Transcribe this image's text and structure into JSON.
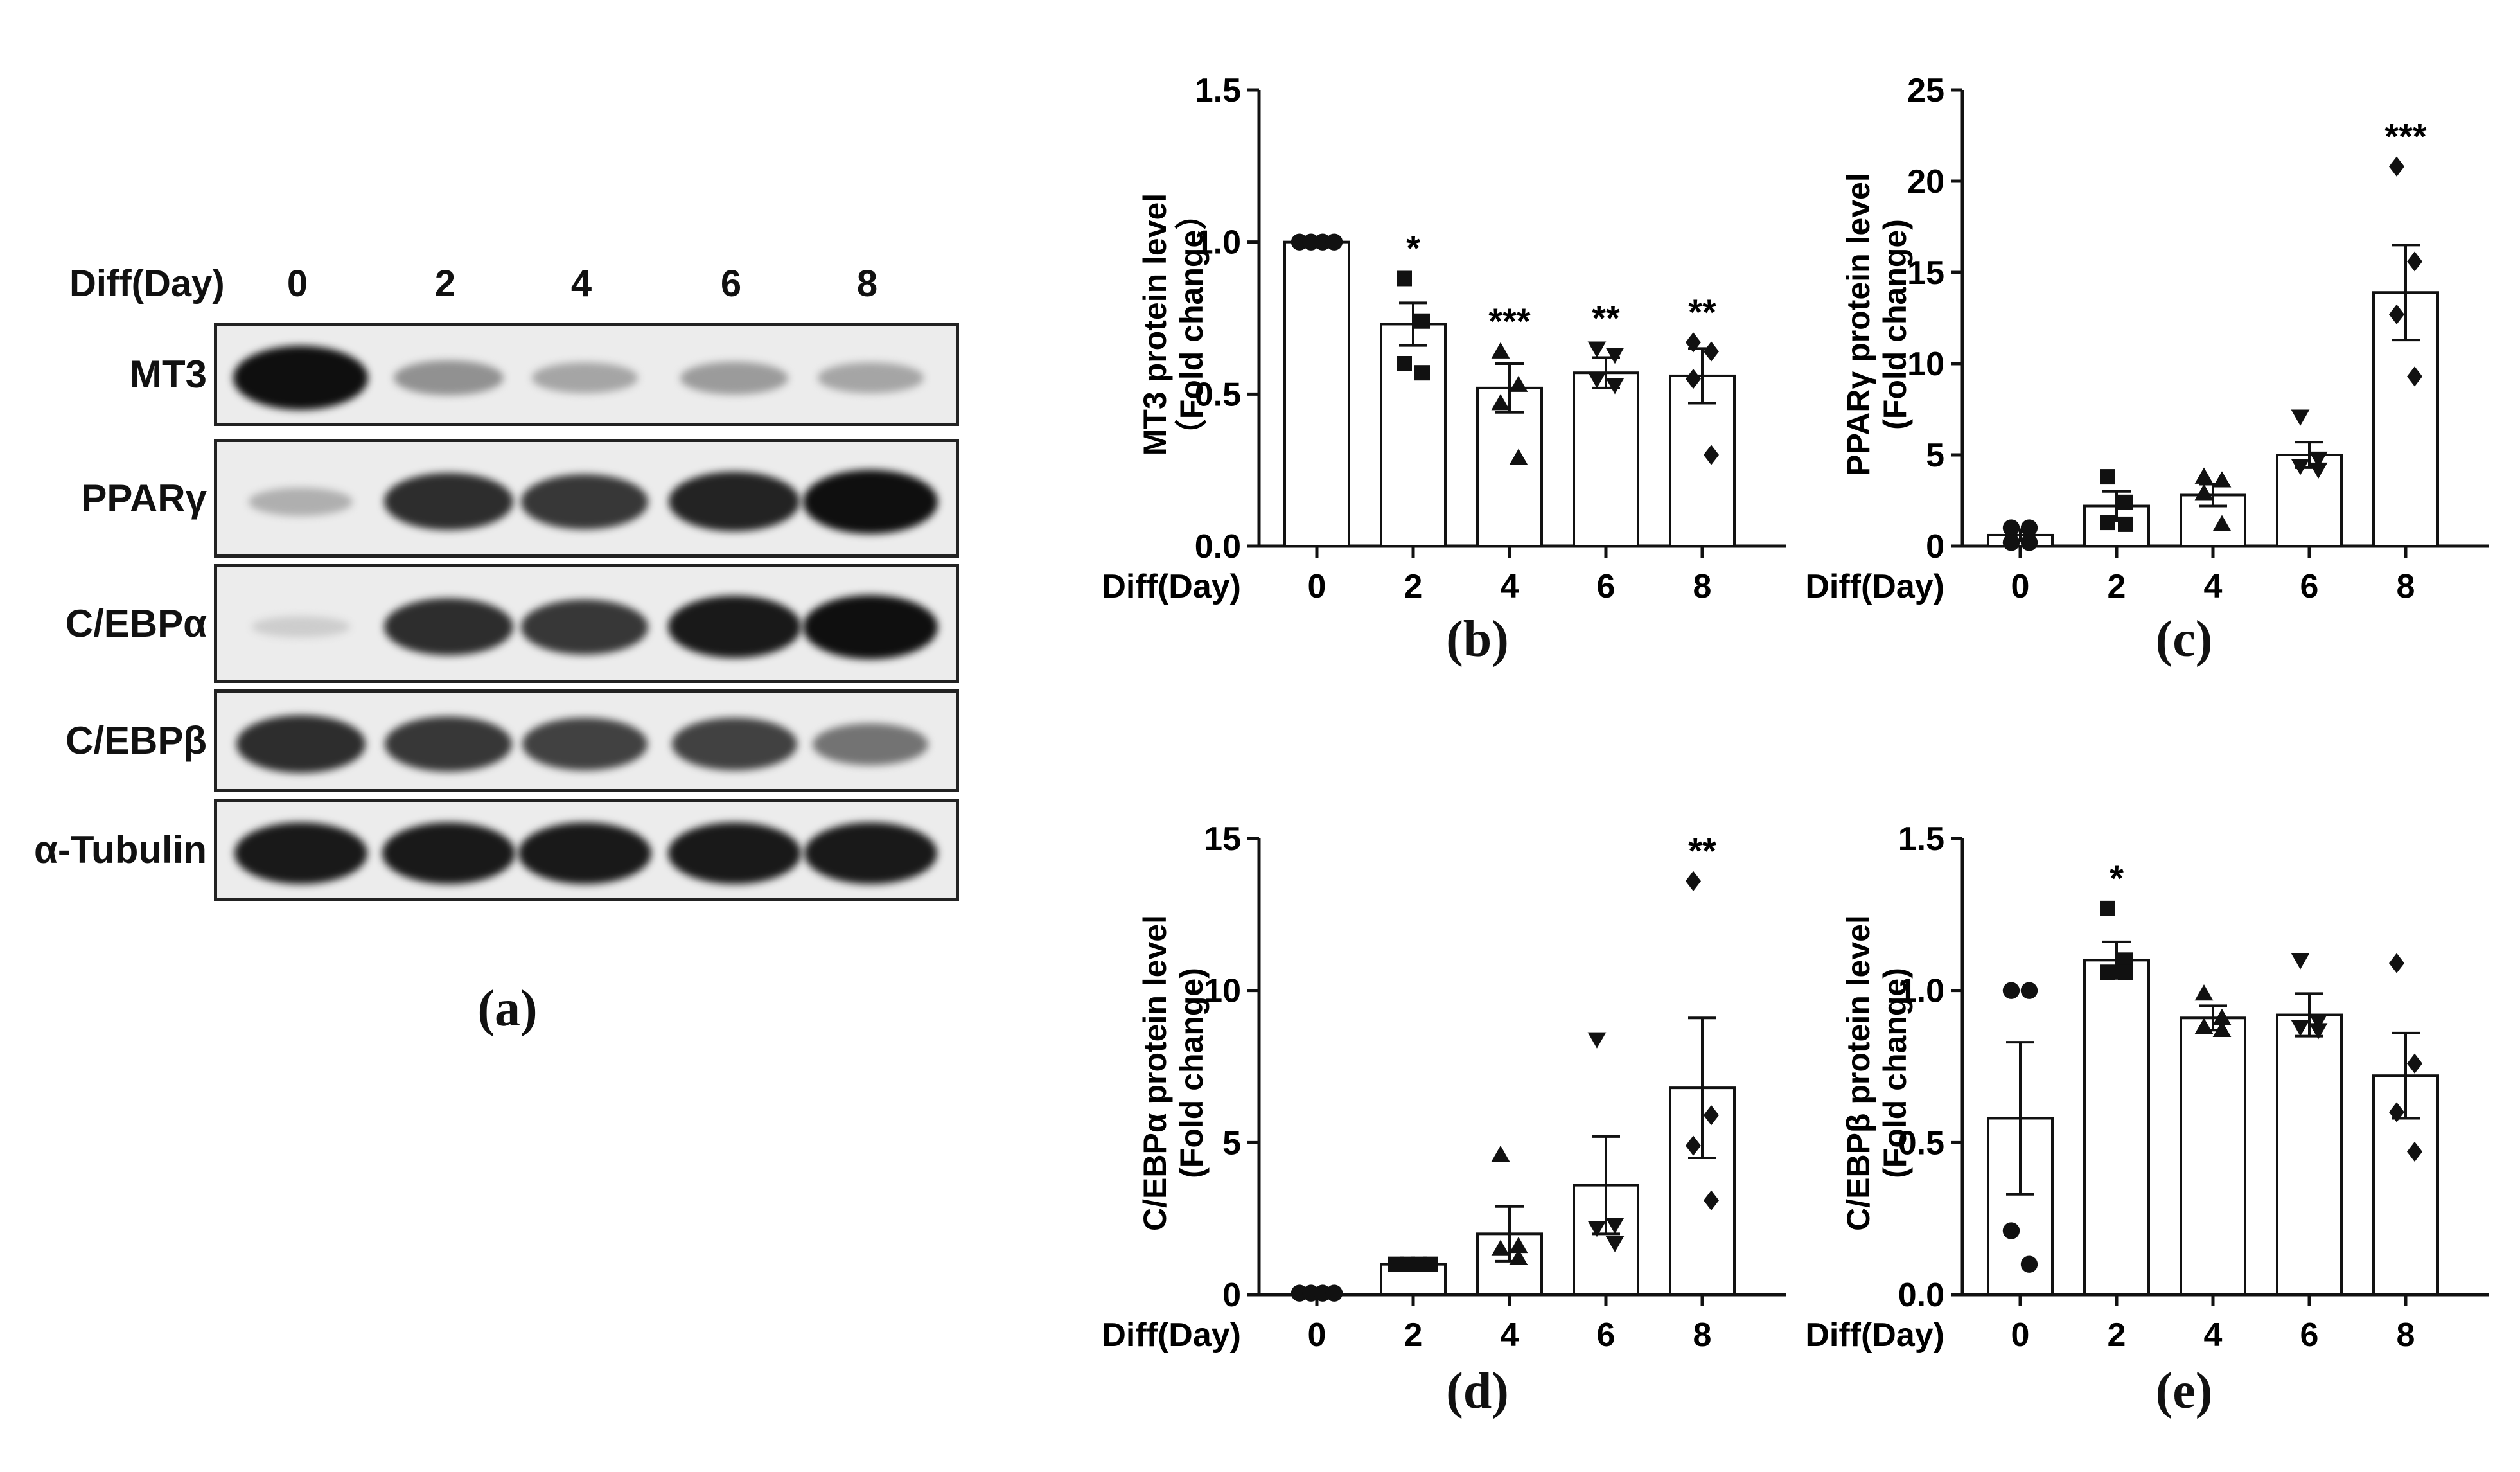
{
  "western_blot": {
    "day_label": "Diff(Day)",
    "days": [
      "0",
      "2",
      "4",
      "6",
      "8"
    ],
    "rows": [
      {
        "label": "MT3",
        "intensity": [
          1.0,
          0.35,
          0.25,
          0.3,
          0.25
        ]
      },
      {
        "label": "PPARγ",
        "intensity": [
          0.2,
          0.85,
          0.8,
          0.9,
          1.0
        ]
      },
      {
        "label": "C/EBPα",
        "intensity": [
          0.05,
          0.85,
          0.8,
          0.95,
          1.0
        ]
      },
      {
        "label": "C/EBPβ",
        "intensity": [
          0.85,
          0.8,
          0.75,
          0.75,
          0.5
        ]
      },
      {
        "label": "α-Tubulin",
        "intensity": [
          0.95,
          0.95,
          0.95,
          0.95,
          0.95
        ]
      }
    ],
    "panel_label": "(a)"
  },
  "chart_data": [
    {
      "type": "bar",
      "panel_label": "(b)",
      "categories": [
        "0",
        "2",
        "4",
        "6",
        "8"
      ],
      "xlabel": "Diff(Day)",
      "ylabel_line1": "MT3 protein level",
      "ylabel_line2": "（Fold change）",
      "ylim": [
        0,
        1.5
      ],
      "yticks": [
        "0.0",
        "0.5",
        "1.0",
        "1.5"
      ],
      "ytick_values": [
        0,
        0.5,
        1.0,
        1.5
      ],
      "values": [
        1.0,
        0.73,
        0.52,
        0.57,
        0.56
      ],
      "sem": [
        0,
        0.07,
        0.08,
        0.05,
        0.09
      ],
      "points": [
        [
          1.0,
          1.0,
          1.0,
          1.0
        ],
        [
          0.88,
          0.74,
          0.6,
          0.57
        ],
        [
          0.64,
          0.53,
          0.47,
          0.29
        ],
        [
          0.65,
          0.63,
          0.55,
          0.53
        ],
        [
          0.67,
          0.64,
          0.55,
          0.3
        ]
      ],
      "markers": [
        "circle",
        "square",
        "triangle",
        "triangle-down",
        "diamond"
      ],
      "significance": [
        "",
        "*",
        "***",
        "**",
        "**"
      ]
    },
    {
      "type": "bar",
      "panel_label": "(c)",
      "categories": [
        "0",
        "2",
        "4",
        "6",
        "8"
      ],
      "xlabel": "Diff(Day)",
      "ylabel_line1": "PPARγ protein level",
      "ylabel_line2": "(Fold change)",
      "ylim": [
        0,
        25
      ],
      "yticks": [
        "0",
        "5",
        "10",
        "15",
        "20",
        "25"
      ],
      "ytick_values": [
        0,
        5,
        10,
        15,
        20,
        25
      ],
      "values": [
        0.6,
        2.2,
        2.8,
        5.0,
        13.9
      ],
      "sem": [
        0.3,
        0.8,
        0.6,
        0.7,
        2.6
      ],
      "points": [
        [
          1.0,
          1.0,
          0.2,
          0.2
        ],
        [
          3.8,
          2.4,
          1.3,
          1.2
        ],
        [
          3.8,
          3.6,
          2.9,
          1.2
        ],
        [
          7.1,
          4.8,
          4.4,
          4.2
        ],
        [
          20.8,
          15.6,
          12.7,
          9.3
        ]
      ],
      "markers": [
        "circle",
        "square",
        "triangle",
        "triangle-down",
        "diamond"
      ],
      "significance": [
        "",
        "",
        "",
        "",
        "***"
      ]
    },
    {
      "type": "bar",
      "panel_label": "(d)",
      "categories": [
        "0",
        "2",
        "4",
        "6",
        "8"
      ],
      "xlabel": "Diff(Day)",
      "ylabel_line1": "C/EBPα protein level",
      "ylabel_line2": "(Fold change)",
      "ylim": [
        0,
        15
      ],
      "yticks": [
        "0",
        "5",
        "10",
        "15"
      ],
      "ytick_values": [
        0,
        5,
        10,
        15
      ],
      "values": [
        0.0,
        1.0,
        2.0,
        3.6,
        6.8
      ],
      "sem": [
        0,
        0,
        0.9,
        1.6,
        2.3
      ],
      "points": [
        [
          0.05,
          0.05,
          0.05,
          0.05
        ],
        [
          1.0,
          1.0,
          1.0,
          1.0
        ],
        [
          4.6,
          1.6,
          1.5,
          1.2
        ],
        [
          8.4,
          2.3,
          2.2,
          1.7
        ],
        [
          13.6,
          5.9,
          4.9,
          3.1
        ]
      ],
      "markers": [
        "circle",
        "square",
        "triangle",
        "triangle-down",
        "diamond"
      ],
      "significance": [
        "",
        "",
        "",
        "",
        "**"
      ]
    },
    {
      "type": "bar",
      "panel_label": "(e)",
      "categories": [
        "0",
        "2",
        "4",
        "6",
        "8"
      ],
      "xlabel": "Diff(Day)",
      "ylabel_line1": "C/EBPβ protein level",
      "ylabel_line2": "(Fold change)",
      "ylim": [
        0,
        1.5
      ],
      "yticks": [
        "0.0",
        "0.5",
        "1.0",
        "1.5"
      ],
      "ytick_values": [
        0,
        0.5,
        1.0,
        1.5
      ],
      "values": [
        0.58,
        1.1,
        0.91,
        0.92,
        0.72
      ],
      "sem": [
        0.25,
        0.06,
        0.04,
        0.07,
        0.14
      ],
      "points": [
        [
          1.0,
          1.0,
          0.21,
          0.1
        ],
        [
          1.27,
          1.1,
          1.06,
          1.06
        ],
        [
          0.99,
          0.91,
          0.88,
          0.87
        ],
        [
          1.1,
          0.9,
          0.88,
          0.87
        ],
        [
          1.09,
          0.76,
          0.6,
          0.47
        ]
      ],
      "markers": [
        "circle",
        "square",
        "triangle",
        "triangle-down",
        "diamond"
      ],
      "significance": [
        "",
        "*",
        "",
        "",
        ""
      ]
    }
  ]
}
